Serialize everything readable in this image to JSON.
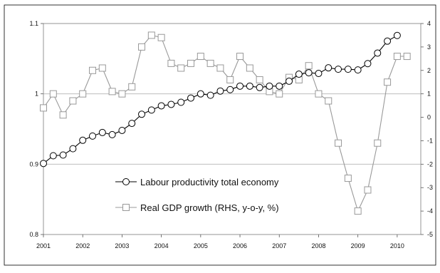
{
  "chart_data": {
    "type": "line",
    "title": "",
    "xlabel": "",
    "ylabel": "",
    "xlim": [
      2001,
      2010.6
    ],
    "x_ticks": [
      "2001",
      "2002",
      "2003",
      "2004",
      "2005",
      "2006",
      "2007",
      "2008",
      "2009",
      "2010"
    ],
    "y_left_ticks": [
      "0.8",
      "0.9",
      "1",
      "1.1"
    ],
    "y_right_ticks": [
      "-5",
      "-4",
      "-3",
      "-2",
      "-1",
      "0",
      "1",
      "2",
      "3",
      "4"
    ],
    "ylim_left": [
      0.8,
      1.1
    ],
    "ylim_right": [
      -5,
      4
    ],
    "grid": "horizontal",
    "legend_placement": "center",
    "series": [
      {
        "name": "Labour productivity total economy",
        "axis": "left",
        "marker": "circle",
        "color": "#000000",
        "x": [
          2001.0,
          2001.25,
          2001.5,
          2001.75,
          2002.0,
          2002.25,
          2002.5,
          2002.75,
          2003.0,
          2003.25,
          2003.5,
          2003.75,
          2004.0,
          2004.25,
          2004.5,
          2004.75,
          2005.0,
          2005.25,
          2005.5,
          2005.75,
          2006.0,
          2006.25,
          2006.5,
          2006.75,
          2007.0,
          2007.25,
          2007.5,
          2007.75,
          2008.0,
          2008.25,
          2008.5,
          2008.75,
          2009.0,
          2009.25,
          2009.5,
          2009.75,
          2010.0
        ],
        "values": [
          0.901,
          0.912,
          0.913,
          0.922,
          0.934,
          0.94,
          0.945,
          0.942,
          0.948,
          0.958,
          0.971,
          0.977,
          0.983,
          0.985,
          0.988,
          0.994,
          1.0,
          0.998,
          1.004,
          1.006,
          1.011,
          1.011,
          1.009,
          1.011,
          1.011,
          1.018,
          1.028,
          1.03,
          1.029,
          1.037,
          1.035,
          1.035,
          1.034,
          1.043,
          1.058,
          1.075,
          1.083
        ]
      },
      {
        "name": "Real GDP growth (RHS, y-o-y, %)",
        "axis": "right",
        "marker": "square",
        "color": "#999999",
        "x": [
          2001.0,
          2001.25,
          2001.5,
          2001.75,
          2002.0,
          2002.25,
          2002.5,
          2002.75,
          2003.0,
          2003.25,
          2003.5,
          2003.75,
          2004.0,
          2004.25,
          2004.5,
          2004.75,
          2005.0,
          2005.25,
          2005.5,
          2005.75,
          2006.0,
          2006.25,
          2006.5,
          2006.75,
          2007.0,
          2007.25,
          2007.5,
          2007.75,
          2008.0,
          2008.25,
          2008.5,
          2008.75,
          2009.0,
          2009.25,
          2009.5,
          2009.75,
          2010.0,
          2010.25
        ],
        "values": [
          0.4,
          1.0,
          0.1,
          0.7,
          1.0,
          2.0,
          2.1,
          1.1,
          1.0,
          1.3,
          3.0,
          3.5,
          3.4,
          2.3,
          2.1,
          2.3,
          2.6,
          2.3,
          2.1,
          1.6,
          2.6,
          2.1,
          1.6,
          1.1,
          1.0,
          1.7,
          1.6,
          2.2,
          1.0,
          0.7,
          -1.1,
          -2.6,
          -4.0,
          -3.1,
          -1.1,
          1.5,
          2.6,
          2.6
        ]
      }
    ]
  }
}
